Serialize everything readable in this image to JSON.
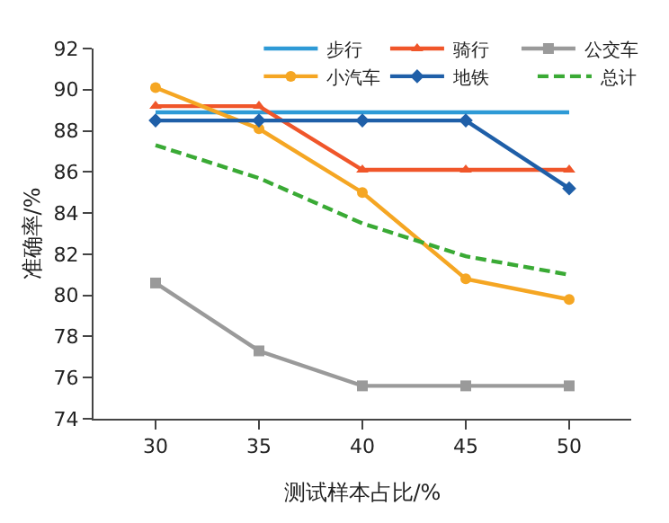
{
  "chart_data": {
    "type": "line",
    "xlabel": "测试样本占比/%",
    "ylabel": "准确率/%",
    "x": [
      30,
      35,
      40,
      45,
      50
    ],
    "series": [
      {
        "name": "步行",
        "color": "#2e9ad6",
        "values": [
          88.9,
          88.9,
          88.9,
          88.9,
          88.9
        ],
        "marker": "none"
      },
      {
        "name": "骑行",
        "color": "#f0562a",
        "values": [
          89.2,
          89.2,
          86.1,
          86.1,
          86.1
        ],
        "marker": "triangle"
      },
      {
        "name": "公交车",
        "color": "#9a9a9a",
        "values": [
          80.6,
          77.3,
          75.6,
          75.6,
          75.6
        ],
        "marker": "square"
      },
      {
        "name": "小汽车",
        "color": "#f5a623",
        "values": [
          90.1,
          88.1,
          85.0,
          80.8,
          79.8
        ],
        "marker": "circle"
      },
      {
        "name": "地铁",
        "color": "#1f5fa8",
        "values": [
          88.5,
          88.5,
          88.5,
          88.5,
          85.2
        ],
        "marker": "diamond"
      },
      {
        "name": "总计",
        "color": "#3aaa35",
        "values": [
          87.3,
          85.7,
          83.5,
          81.9,
          81.0
        ],
        "marker": "none",
        "line_style": "dashed"
      }
    ],
    "xlim": [
      27,
      53
    ],
    "xticks": [
      30,
      35,
      40,
      45,
      50
    ],
    "ylim": [
      74,
      92
    ],
    "yticks": [
      74,
      76,
      78,
      80,
      82,
      84,
      86,
      88,
      90,
      92
    ],
    "legend": "top right"
  }
}
